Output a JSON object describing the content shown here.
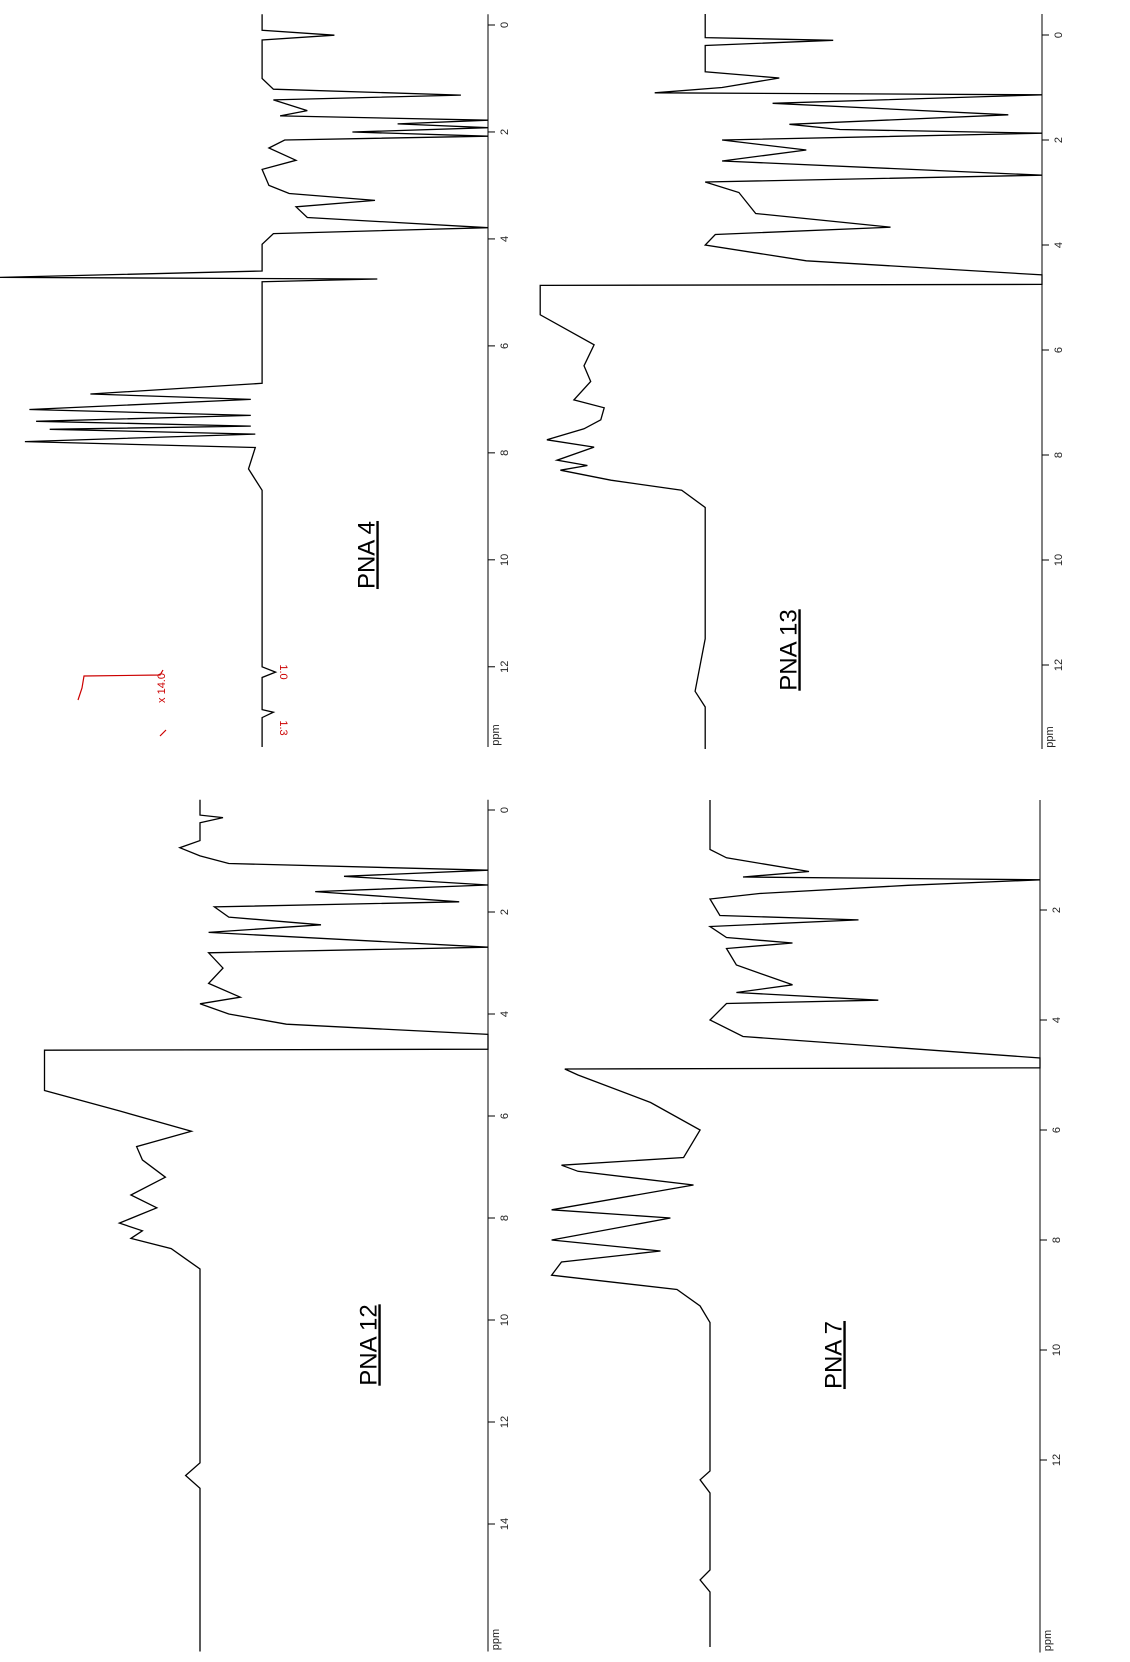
{
  "chart_data": [
    {
      "type": "line",
      "title": "PNA 4",
      "xlabel": "ppm",
      "xlim": [
        -0.2,
        13.5
      ],
      "xticks": [
        0,
        2,
        4,
        6,
        8,
        10,
        12
      ],
      "ylim": [
        -100,
        116
      ],
      "color": "#000000",
      "annotations": [
        "1.3",
        "1.0",
        "x 14.0"
      ],
      "x": [
        -0.2,
        0.1,
        0.19,
        0.28,
        1.0,
        1.2,
        1.31,
        1.4,
        1.6,
        1.7,
        1.78,
        1.85,
        1.92,
        2.0,
        2.08,
        2.15,
        2.3,
        2.53,
        2.7,
        3.0,
        3.15,
        3.28,
        3.4,
        3.6,
        3.79,
        3.9,
        4.1,
        4.6,
        4.72,
        4.75,
        4.8,
        6.7,
        6.9,
        7.0,
        7.19,
        7.3,
        7.41,
        7.5,
        7.56,
        7.65,
        7.79,
        7.9,
        8.3,
        8.5,
        8.7,
        12.0,
        12.1,
        12.2,
        12.8,
        12.85,
        12.95,
        13.5
      ],
      "values": [
        0,
        0,
        -32,
        0,
        0,
        -5,
        -88,
        -5,
        -20,
        -8,
        -100,
        -60,
        -100,
        -40,
        -100,
        -10,
        -3,
        -15,
        0,
        -3,
        -12,
        -50,
        -15,
        -20,
        -100,
        -5,
        0,
        0,
        116,
        -51,
        0,
        0,
        76,
        5,
        103,
        5,
        100,
        5,
        94,
        3,
        105,
        3,
        6,
        3,
        0,
        0,
        -6,
        0,
        0,
        -5,
        0,
        0
      ]
    },
    {
      "type": "line",
      "title": "PNA 13",
      "xlabel": "ppm",
      "xlim": [
        -0.4,
        13.6
      ],
      "xticks": [
        0,
        2,
        4,
        6,
        8,
        10,
        12
      ],
      "ylim": [
        -100,
        55
      ],
      "color": "#000000",
      "x": [
        -0.4,
        0.05,
        0.1,
        0.2,
        0.7,
        0.82,
        1.0,
        1.1,
        1.14,
        1.3,
        1.52,
        1.7,
        1.8,
        1.87,
        2.0,
        2.19,
        2.4,
        2.67,
        2.8,
        3.0,
        3.4,
        3.66,
        3.8,
        4.0,
        4.3,
        4.57,
        4.75,
        4.77,
        5.33,
        5.9,
        6.3,
        6.6,
        6.95,
        7.1,
        7.33,
        7.5,
        7.71,
        7.85,
        8.1,
        8.2,
        8.29,
        8.48,
        8.67,
        9.0,
        11.5,
        12.5,
        12.8,
        13.6
      ],
      "values": [
        0,
        0,
        -38,
        0,
        0,
        -22,
        -5,
        15,
        -100,
        -20,
        -90,
        -25,
        -40,
        -100,
        -5,
        -30,
        -5,
        -100,
        0,
        -10,
        -15,
        -55,
        -3,
        0,
        -30,
        -100,
        -100,
        49,
        49,
        33,
        36,
        34,
        39,
        30,
        31,
        36,
        47,
        33,
        44,
        35,
        43,
        28,
        7,
        0,
        0,
        3,
        0,
        0
      ]
    },
    {
      "type": "line",
      "title": "PNA 12",
      "xlabel": "ppm",
      "xlim": [
        -0.2,
        16.5
      ],
      "xticks": [
        0,
        2,
        4,
        6,
        8,
        10,
        12,
        14
      ],
      "ylim": [
        -100,
        62.5
      ],
      "color": "#000000",
      "x": [
        -0.2,
        0.1,
        0.15,
        0.25,
        0.6,
        0.74,
        0.9,
        1.05,
        1.18,
        1.3,
        1.47,
        1.6,
        1.8,
        1.9,
        2.1,
        2.25,
        2.4,
        2.69,
        2.8,
        3.1,
        3.4,
        3.67,
        3.8,
        4.0,
        4.2,
        4.4,
        4.69,
        4.71,
        5.5,
        5.9,
        6.3,
        6.6,
        6.86,
        7.2,
        7.55,
        7.8,
        7.94,
        8.1,
        8.25,
        8.4,
        8.6,
        8.8,
        9.0,
        12.8,
        13.05,
        13.3,
        16.5
      ],
      "values": [
        0,
        0,
        -8,
        0,
        0,
        7,
        0,
        -10,
        -100,
        -50,
        -100,
        -40,
        -90,
        -5,
        -10,
        -42,
        -3,
        -100,
        -3,
        -8,
        -3,
        -14,
        0,
        -10,
        -30,
        -100,
        -100,
        54,
        54,
        28,
        3,
        22,
        20,
        12,
        24,
        15,
        21,
        28,
        20,
        24,
        10,
        5,
        0,
        0,
        5,
        0,
        0
      ]
    },
    {
      "type": "line",
      "title": "PNA 7",
      "xlabel": "ppm",
      "xlim": [
        0,
        15.5
      ],
      "xticks": [
        2,
        4,
        6,
        8,
        10,
        12
      ],
      "ylim": [
        -100,
        51.5
      ],
      "color": "#000000",
      "x": [
        0,
        0.9,
        1.05,
        1.3,
        1.4,
        1.45,
        1.55,
        1.7,
        1.8,
        2.1,
        2.18,
        2.3,
        2.5,
        2.6,
        2.7,
        3.0,
        3.36,
        3.5,
        3.64,
        3.7,
        4.0,
        4.3,
        4.69,
        4.87,
        4.89,
        5.0,
        5.5,
        6.0,
        6.5,
        6.64,
        6.75,
        7.0,
        7.45,
        7.6,
        8.0,
        8.2,
        8.4,
        8.64,
        8.9,
        9.2,
        9.5,
        12.2,
        12.36,
        12.6,
        14.0,
        14.18,
        14.4,
        15.4
      ],
      "values": [
        0,
        0,
        -5,
        -30,
        -10,
        -100,
        -60,
        -15,
        0,
        -3,
        -45,
        0,
        -5,
        -25,
        -5,
        -8,
        -25,
        -8,
        -51,
        -5,
        0,
        -10,
        -100,
        -100,
        44,
        40,
        18,
        3,
        8,
        45,
        40,
        5,
        48,
        12,
        48,
        15,
        45,
        48,
        10,
        3,
        0,
        0,
        3,
        0,
        0,
        3,
        0,
        0
      ]
    }
  ]
}
